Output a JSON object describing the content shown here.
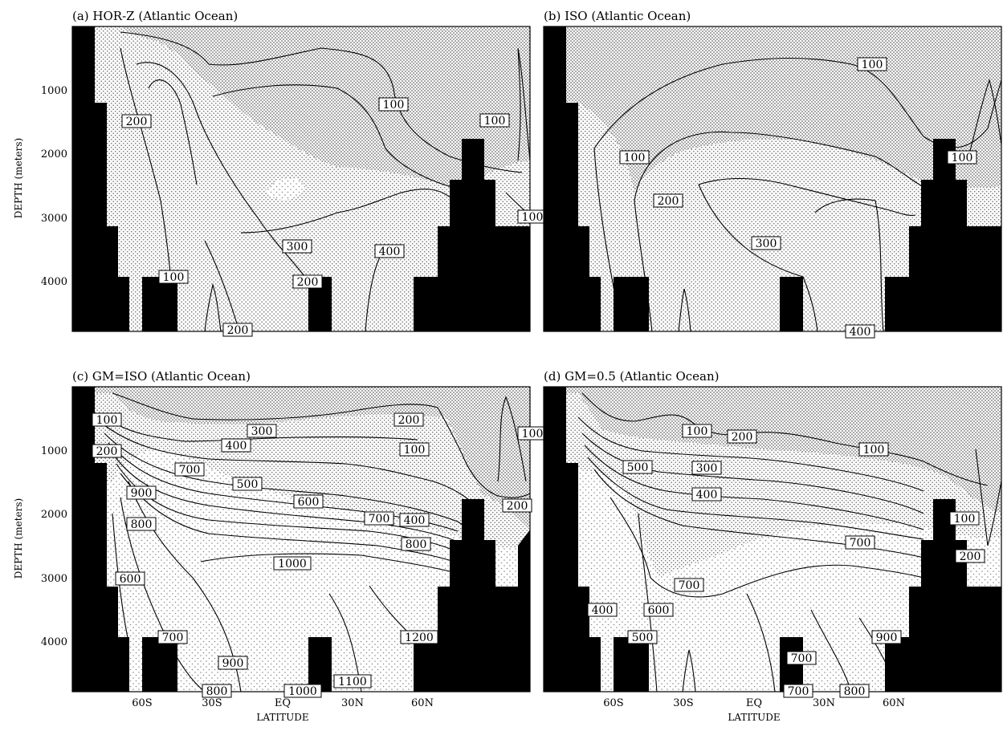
{
  "figure": {
    "colors": {
      "land": "#000000",
      "low": "#c4c4c4",
      "mid": "#dadada",
      "high": "#e9e9e9",
      "line": "#000000"
    }
  },
  "chart_data": [
    {
      "type": "contour",
      "title": "(a) HOR-Z (Atlantic Ocean)",
      "xlabel": "",
      "ylabel": "DEPTH (meters)",
      "xticks": [
        "60S",
        "30S",
        "EQ",
        "30N",
        "60N"
      ],
      "yticks": [
        "1000",
        "2000",
        "3000",
        "4000"
      ],
      "ylim": [
        0,
        4800
      ],
      "contour_labels": [
        "200",
        "100",
        "100",
        "100",
        "300",
        "400",
        "100",
        "200",
        "200"
      ]
    },
    {
      "type": "contour",
      "title": "(b) ISO (Atlantic Ocean)",
      "xlabel": "",
      "ylabel": "",
      "xticks": [
        "60S",
        "30S",
        "EQ",
        "30N",
        "60N"
      ],
      "yticks": [],
      "ylim": [
        0,
        4800
      ],
      "contour_labels": [
        "100",
        "100",
        "100",
        "200",
        "300",
        "400"
      ]
    },
    {
      "type": "contour",
      "title": "(c) GM=ISO (Atlantic Ocean)",
      "xlabel": "LATITUDE",
      "ylabel": "DEPTH (meters)",
      "xticks": [
        "60S",
        "30S",
        "EQ",
        "30N",
        "60N"
      ],
      "yticks": [
        "1000",
        "2000",
        "3000",
        "4000"
      ],
      "ylim": [
        0,
        4800
      ],
      "contour_labels": [
        "100",
        "200",
        "300",
        "200",
        "400",
        "100",
        "100",
        "700",
        "900",
        "500",
        "600",
        "800",
        "700",
        "400",
        "200",
        "1000",
        "800",
        "600",
        "700",
        "1200",
        "900",
        "800",
        "1000",
        "1100"
      ]
    },
    {
      "type": "contour",
      "title": "(d) GM=0.5 (Atlantic Ocean)",
      "xlabel": "LATITUDE",
      "ylabel": "",
      "xticks": [
        "60S",
        "30S",
        "EQ",
        "30N",
        "60N"
      ],
      "yticks": [],
      "ylim": [
        0,
        4800
      ],
      "contour_labels": [
        "100",
        "200",
        "100",
        "500",
        "300",
        "400",
        "100",
        "700",
        "200",
        "700",
        "400",
        "600",
        "500",
        "900",
        "700",
        "700",
        "800"
      ]
    }
  ]
}
